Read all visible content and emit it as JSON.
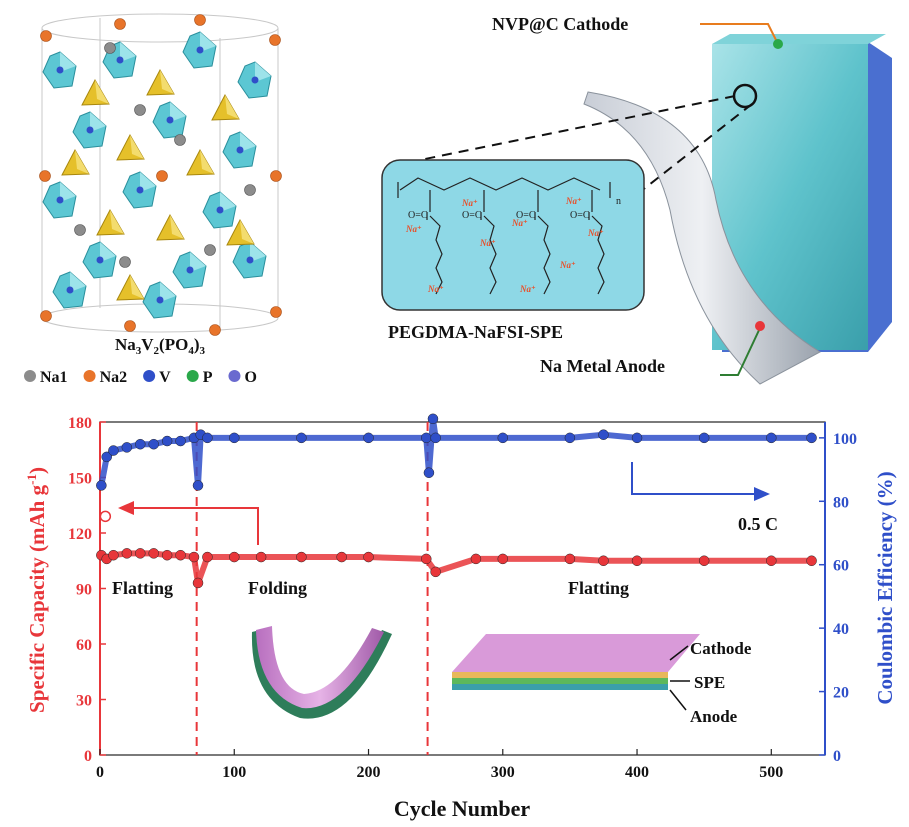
{
  "crystal": {
    "formula": "Na3V2(PO4)3",
    "legend": [
      {
        "label": "Na1",
        "color": "#8c8c8c"
      },
      {
        "label": "Na2",
        "color": "#e8742a"
      },
      {
        "label": "V",
        "color": "#2f4fc9"
      },
      {
        "label": "P",
        "color": "#2aa84a"
      },
      {
        "label": "O",
        "color": "#6a6acf"
      }
    ]
  },
  "battery": {
    "cathode_label": "NVP@C Cathode",
    "electrolyte_label": "PEGDMA-NaFSI-SPE",
    "anode_label": "Na Metal Anode",
    "polymer_n": "n",
    "ion_label": "Na⁺"
  },
  "chart_data": {
    "type": "scatter",
    "xlabel": "Cycle Number",
    "ylabel_left": "Specific Capacity (mAh g⁻¹)",
    "ylabel_right": "Coulombic Efficiency (%)",
    "xlim": [
      0,
      540
    ],
    "ylim_left": [
      0,
      180
    ],
    "ylim_right": [
      0,
      105
    ],
    "x_ticks": [
      0,
      100,
      200,
      300,
      400,
      500
    ],
    "y_left_ticks": [
      0,
      30,
      60,
      90,
      120,
      150,
      180
    ],
    "y_right_ticks": [
      0,
      20,
      40,
      60,
      80,
      100
    ],
    "series": [
      {
        "axis": "left",
        "color": "#e8363a",
        "x": [
          1,
          5,
          10,
          20,
          30,
          40,
          50,
          60,
          70,
          73,
          80,
          100,
          120,
          150,
          180,
          200,
          243,
          250,
          280,
          300,
          350,
          375,
          400,
          450,
          500,
          530
        ],
        "y": [
          108,
          106,
          108,
          109,
          109,
          109,
          108,
          108,
          107,
          93,
          107,
          107,
          107,
          107,
          107,
          107,
          106,
          99,
          106,
          106,
          106,
          105,
          105,
          105,
          105,
          105
        ]
      },
      {
        "axis": "right",
        "color": "#2f4fc9",
        "x": [
          1,
          5,
          10,
          20,
          30,
          40,
          50,
          60,
          70,
          73,
          75,
          80,
          100,
          150,
          200,
          243,
          245,
          248,
          250,
          300,
          350,
          375,
          400,
          450,
          500,
          530
        ],
        "y": [
          85,
          94,
          96,
          97,
          98,
          98,
          99,
          99,
          100,
          85,
          101,
          100,
          100,
          100,
          100,
          100,
          89,
          106,
          100,
          100,
          100,
          101,
          100,
          100,
          100,
          100
        ]
      }
    ],
    "hollow_points": [
      {
        "x": 1,
        "y": 129,
        "axis": "left"
      }
    ],
    "dividers": [
      72,
      244
    ],
    "annotations": {
      "rate": "0.5 C",
      "stage1": "Flatting",
      "stage2": "Folding",
      "stage3": "Flatting",
      "layer_cathode": "Cathode",
      "layer_spe": "SPE",
      "layer_anode": "Anode"
    }
  }
}
